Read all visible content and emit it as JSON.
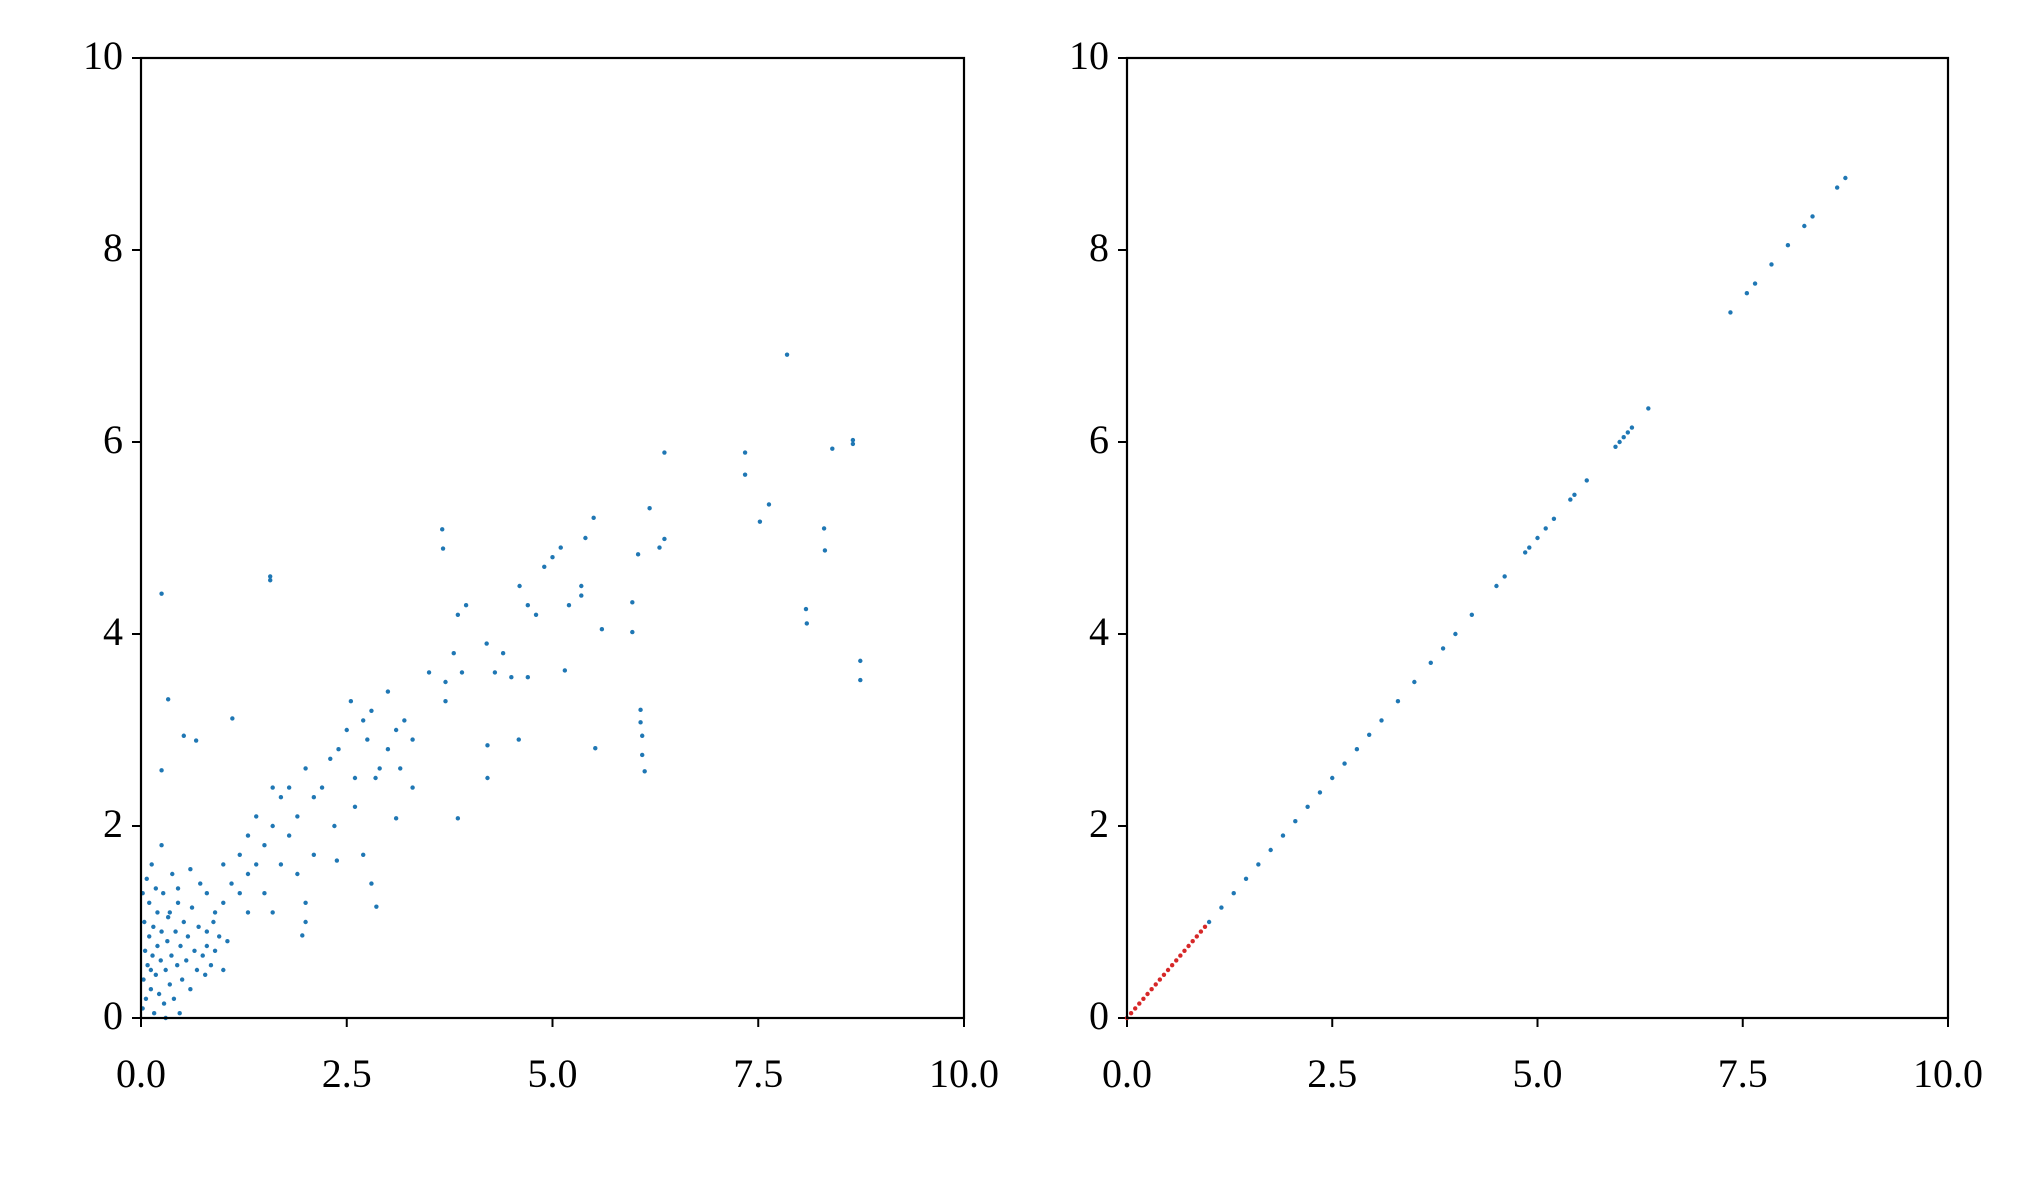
{
  "chart_data": [
    {
      "type": "scatter",
      "xlim": [
        0,
        10
      ],
      "ylim": [
        0,
        10
      ],
      "xticks": [
        {
          "value": 0,
          "label": "0.0"
        },
        2.5,
        {
          "value": 5,
          "label": "5.0"
        },
        7.5,
        {
          "value": 10,
          "label": "10.0"
        }
      ],
      "yticks": [
        0,
        2,
        4,
        6,
        8,
        10
      ],
      "grid": false,
      "series": [
        {
          "color": "#1f77b4",
          "x": [
            7.85,
            8.65,
            8.65,
            8.4,
            7.34,
            7.34,
            6.36,
            7.63,
            7.52,
            8.3,
            8.31,
            8.08,
            8.09,
            8.74,
            8.74,
            3.66,
            3.67,
            5.5,
            6.18,
            6.36,
            6.04,
            1.57,
            1.57,
            0.25,
            0.33,
            0.52,
            0.67,
            1.11,
            0.25,
            5.52,
            6.07,
            6.07,
            6.09,
            6.09,
            6.12,
            5.97,
            5.97,
            5.15,
            4.59,
            4.21,
            4.21,
            3.85,
            3.1,
            2.86,
            1.96,
            2.38,
            2.0,
            2.1,
            2.2,
            2.3,
            2.4,
            2.5,
            2.55,
            2.6,
            2.7,
            2.75,
            2.8,
            2.85,
            2.9,
            3.0,
            3.0,
            3.1,
            3.15,
            3.2,
            3.3,
            3.3,
            2.6,
            2.7,
            2.8,
            2.35,
            2.1,
            1.9,
            1.8,
            1.7,
            1.6,
            1.5,
            1.4,
            1.3,
            1.2,
            1.1,
            1.0,
            1.5,
            1.7,
            1.9,
            2.0,
            1.8,
            1.6,
            1.4,
            1.3,
            1.2,
            1.0,
            0.9,
            0.8,
            0.8,
            1.05,
            1.3,
            1.6,
            2.0,
            3.5,
            3.7,
            3.8,
            3.9,
            3.95,
            3.85,
            3.7,
            4.2,
            4.5,
            4.6,
            4.7,
            4.8,
            4.9,
            5.0,
            5.1,
            5.2,
            5.35,
            5.35,
            5.4,
            5.6,
            4.4,
            4.3,
            4.7,
            6.3,
            0.02,
            0.03,
            0.05,
            0.04,
            0.06,
            0.08,
            0.1,
            0.1,
            0.12,
            0.14,
            0.15,
            0.16,
            0.18,
            0.2,
            0.2,
            0.22,
            0.24,
            0.25,
            0.27,
            0.28,
            0.3,
            0.32,
            0.33,
            0.35,
            0.37,
            0.38,
            0.4,
            0.42,
            0.44,
            0.45,
            0.47,
            0.48,
            0.5,
            0.52,
            0.55,
            0.57,
            0.6,
            0.62,
            0.65,
            0.68,
            0.7,
            0.72,
            0.75,
            0.78,
            0.8,
            0.85,
            0.88,
            0.9,
            0.95,
            1.0,
            0.07,
            0.13,
            0.25,
            0.02,
            0.3,
            0.18,
            0.6,
            0.45,
            0.35,
            0.12
          ],
          "y": [
            6.91,
            6.02,
            5.98,
            5.93,
            5.89,
            5.66,
            5.89,
            5.35,
            5.17,
            5.1,
            4.87,
            4.26,
            4.11,
            3.72,
            3.52,
            5.09,
            4.89,
            5.21,
            5.31,
            4.99,
            4.83,
            4.6,
            4.56,
            4.42,
            3.32,
            2.94,
            2.89,
            3.12,
            2.58,
            2.81,
            3.21,
            3.08,
            2.94,
            2.74,
            2.57,
            4.02,
            4.33,
            3.62,
            2.9,
            2.84,
            2.5,
            2.08,
            2.08,
            1.16,
            0.86,
            1.64,
            2.6,
            2.3,
            2.4,
            2.7,
            2.8,
            3.0,
            3.3,
            2.5,
            3.1,
            2.9,
            3.2,
            2.5,
            2.6,
            2.8,
            3.4,
            3.0,
            2.6,
            3.1,
            2.4,
            2.9,
            2.2,
            1.7,
            1.4,
            2.0,
            1.7,
            2.1,
            1.9,
            2.3,
            2.0,
            1.8,
            1.6,
            1.5,
            1.3,
            1.4,
            1.2,
            1.3,
            1.6,
            1.5,
            1.2,
            2.4,
            2.4,
            2.1,
            1.9,
            1.7,
            1.6,
            1.1,
            1.3,
            0.9,
            0.8,
            1.1,
            1.1,
            1.0,
            3.6,
            3.5,
            3.8,
            3.6,
            4.3,
            4.2,
            3.3,
            3.9,
            3.55,
            4.5,
            4.3,
            4.2,
            4.7,
            4.8,
            4.9,
            4.3,
            4.5,
            4.4,
            5.0,
            4.05,
            3.8,
            3.6,
            3.55,
            4.9,
            0.1,
            0.4,
            0.7,
            1.0,
            0.2,
            0.55,
            0.85,
            1.2,
            0.3,
            0.65,
            0.95,
            0.05,
            0.45,
            0.75,
            1.1,
            0.25,
            0.6,
            0.9,
            1.3,
            0.15,
            0.5,
            0.8,
            1.05,
            0.35,
            0.65,
            1.5,
            0.2,
            0.9,
            0.55,
            1.2,
            0.05,
            0.75,
            0.4,
            1.0,
            0.6,
            0.85,
            0.3,
            1.15,
            0.7,
            0.5,
            0.95,
            1.4,
            0.65,
            0.45,
            0.75,
            0.55,
            1.0,
            0.7,
            0.85,
            0.5,
            1.45,
            1.6,
            1.8,
            1.3,
            0.0,
            1.35,
            1.55,
            1.35,
            1.1,
            0.5
          ]
        }
      ]
    },
    {
      "type": "scatter",
      "xlim": [
        0,
        10
      ],
      "ylim": [
        0,
        10
      ],
      "xticks": [
        {
          "value": 0,
          "label": "0.0"
        },
        2.5,
        {
          "value": 5,
          "label": "5.0"
        },
        7.5,
        {
          "value": 10,
          "label": "10.0"
        }
      ],
      "yticks": [
        0,
        2,
        4,
        6,
        8,
        10
      ],
      "grid": false,
      "series": [
        {
          "color": "#1f77b4",
          "x": [
            1.0,
            1.15,
            1.3,
            1.45,
            1.6,
            1.75,
            1.9,
            2.05,
            2.2,
            2.35,
            2.5,
            2.65,
            2.8,
            2.95,
            3.1,
            3.3,
            3.5,
            3.7,
            3.85,
            4.0,
            4.2,
            4.5,
            4.6,
            4.85,
            4.9,
            5.0,
            5.1,
            5.2,
            5.4,
            5.45,
            5.6,
            5.95,
            6.0,
            6.05,
            6.1,
            6.15,
            6.35,
            7.35,
            7.55,
            7.65,
            7.85,
            8.05,
            8.25,
            8.35,
            8.65,
            8.75
          ],
          "y": [
            1.0,
            1.15,
            1.3,
            1.45,
            1.6,
            1.75,
            1.9,
            2.05,
            2.2,
            2.35,
            2.5,
            2.65,
            2.8,
            2.95,
            3.1,
            3.3,
            3.5,
            3.7,
            3.85,
            4.0,
            4.2,
            4.5,
            4.6,
            4.85,
            4.9,
            5.0,
            5.1,
            5.2,
            5.4,
            5.45,
            5.6,
            5.95,
            6.0,
            6.05,
            6.1,
            6.15,
            6.35,
            7.35,
            7.55,
            7.65,
            7.85,
            8.05,
            8.25,
            8.35,
            8.65,
            8.75
          ]
        },
        {
          "color": "#d62728",
          "x": [
            0.0,
            0.05,
            0.1,
            0.15,
            0.2,
            0.25,
            0.3,
            0.35,
            0.4,
            0.45,
            0.5,
            0.55,
            0.6,
            0.65,
            0.7,
            0.75,
            0.8,
            0.85,
            0.9,
            0.95
          ],
          "y": [
            0.0,
            0.05,
            0.1,
            0.15,
            0.2,
            0.25,
            0.3,
            0.35,
            0.4,
            0.45,
            0.5,
            0.55,
            0.6,
            0.65,
            0.7,
            0.75,
            0.8,
            0.85,
            0.9,
            0.95
          ]
        }
      ]
    }
  ]
}
